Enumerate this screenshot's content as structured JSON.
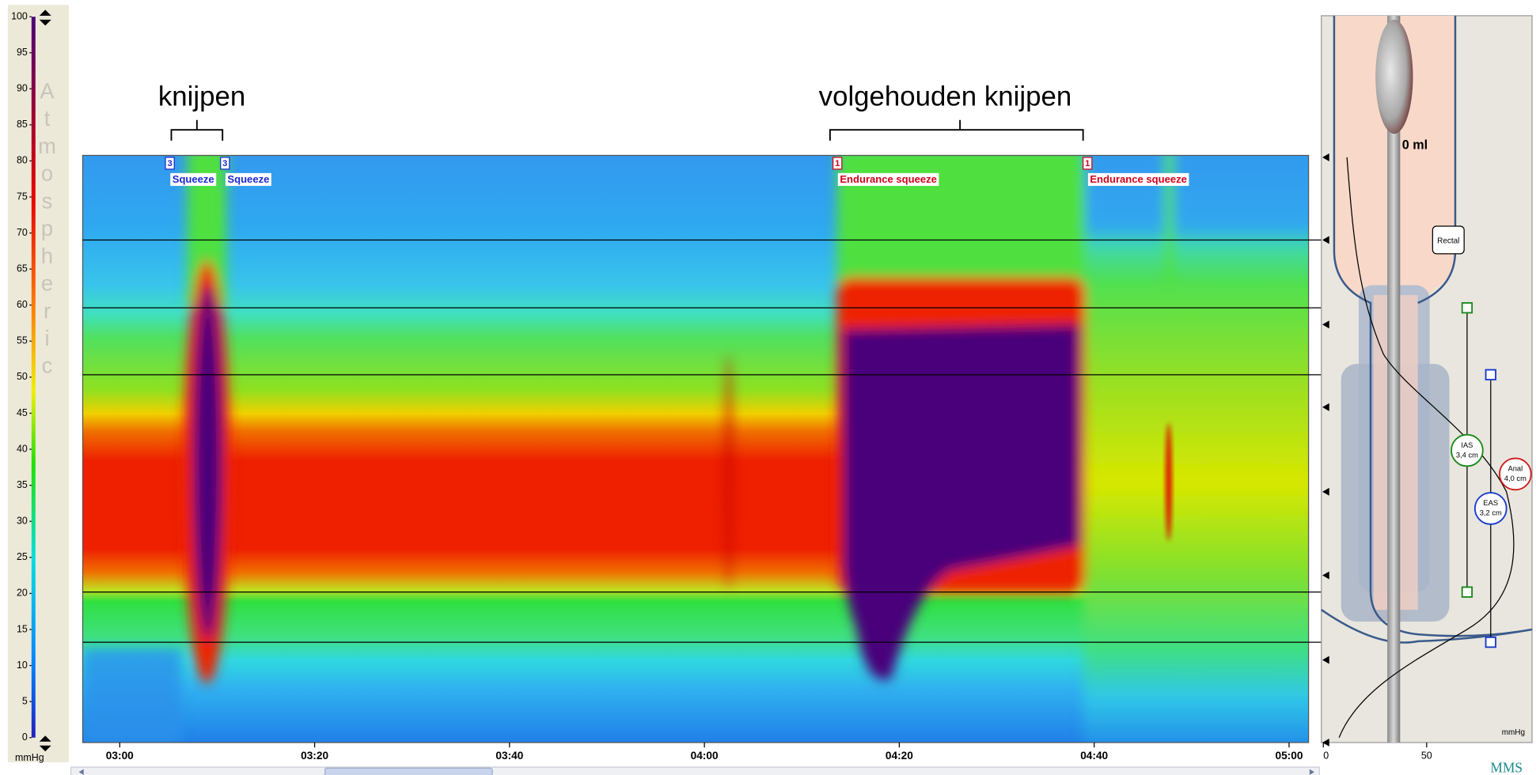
{
  "colorbar": {
    "range": [
      0,
      100
    ],
    "ticks": [
      0,
      5,
      10,
      15,
      20,
      25,
      30,
      35,
      40,
      45,
      50,
      55,
      60,
      65,
      70,
      75,
      80,
      85,
      90,
      95,
      100
    ],
    "title": "Atmospheric",
    "unit": "mmHg"
  },
  "annotations": [
    "knijpen",
    "volgehouden knijpen"
  ],
  "events": [
    {
      "count": 3,
      "label": "Squeeze"
    },
    {
      "count": 3,
      "label": "Squeeze"
    },
    {
      "count": 1,
      "label": "Endurance squeeze"
    },
    {
      "count": 1,
      "label": "Endurance squeeze"
    }
  ],
  "time_axis": {
    "range": [
      176.2,
      302.0
    ],
    "ticks": [
      {
        "value": 180,
        "label": "03:00"
      },
      {
        "value": 200,
        "label": "03:20"
      },
      {
        "value": 220,
        "label": "03:40"
      },
      {
        "value": 240,
        "label": "04:00"
      },
      {
        "value": 260,
        "label": "04:20"
      },
      {
        "value": 280,
        "label": "04:40"
      },
      {
        "value": 300,
        "label": "05:00"
      }
    ]
  },
  "profile": {
    "volume": "0 ml",
    "sensor": "Rectal",
    "zones": [
      {
        "name": "IAS",
        "length": "3,4 cm"
      },
      {
        "name": "Anal",
        "length": "4,0 cm"
      },
      {
        "name": "EAS",
        "length": "3,2 cm"
      }
    ],
    "axis": {
      "range": [
        0,
        101
      ],
      "ticks": [
        0,
        50
      ],
      "unit": "mmHg"
    }
  },
  "logo": "MMS"
}
